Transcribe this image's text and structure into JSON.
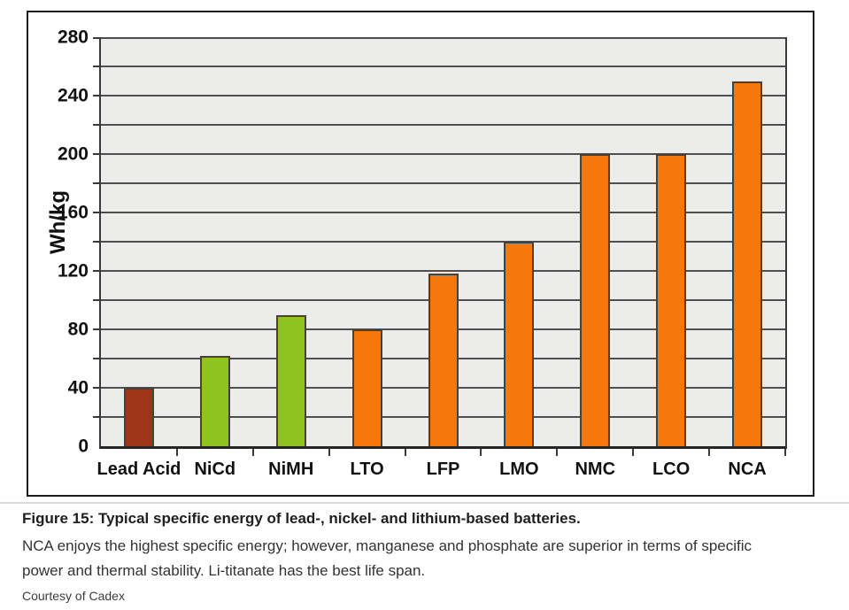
{
  "chart_data": {
    "type": "bar",
    "categories": [
      "Lead Acid",
      "NiCd",
      "NiMH",
      "LTO",
      "LFP",
      "LMO",
      "NMC",
      "LCO",
      "NCA"
    ],
    "values": [
      40,
      62,
      90,
      80,
      118,
      140,
      200,
      200,
      250
    ],
    "bar_colors": [
      "#9E3517",
      "#8FC31F",
      "#8FC31F",
      "#F5780F",
      "#F5780F",
      "#F5780F",
      "#F5780F",
      "#F5780F",
      "#F5780F"
    ],
    "title": "",
    "xlabel": "",
    "ylabel": "Wh/kg",
    "ylim": [
      0,
      280
    ],
    "ytick_labels": [
      280,
      240,
      200,
      160,
      120,
      80,
      40,
      0
    ],
    "gridline_step": 20,
    "grid": "horizontal-on",
    "legend": "none",
    "plot_background": "#ECECEA",
    "gridline_color": "#4e4e4e",
    "frame_border_color": "#1b1b1b"
  },
  "caption": {
    "title": "Figure 15: Typical specific energy of lead-, nickel- and lithium-based batteries.",
    "body": "NCA enjoys the highest specific energy; however, manganese and phosphate are superior in terms of specific power and thermal stability. Li-titanate has the best life span.",
    "credit": "Courtesy of Cadex"
  }
}
